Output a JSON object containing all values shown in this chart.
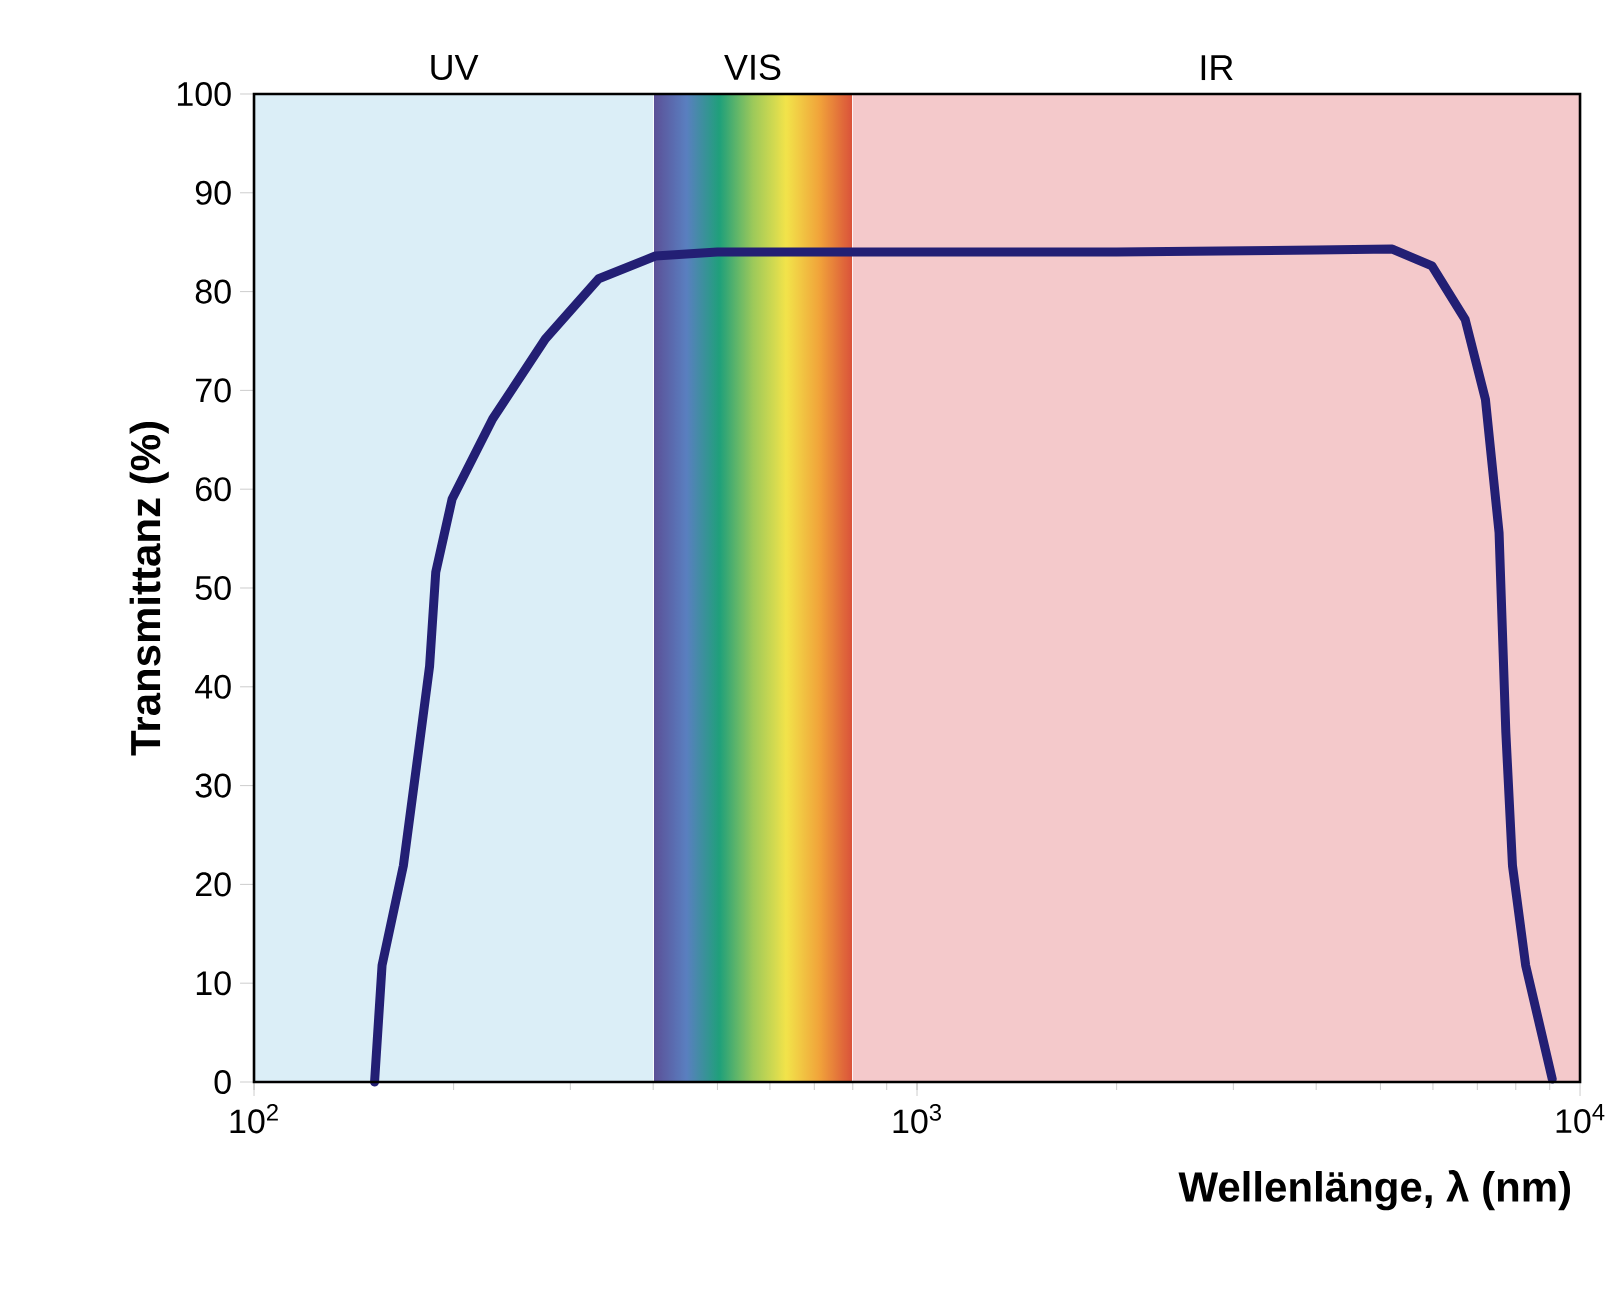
{
  "chart_data": {
    "type": "line",
    "xlabel": "Wellenlänge, λ (nm)",
    "ylabel": "Transmittanz (%)",
    "log": "x",
    "xlim": [
      100,
      10000
    ],
    "ylim": [
      0,
      100
    ],
    "xticks": [
      {
        "value": 100,
        "label": "10$^{2}$"
      },
      {
        "value": 1000,
        "label": "10$^{3}$"
      },
      {
        "value": 10000,
        "label": "10$^{4}$"
      }
    ],
    "yticks": [
      0,
      10,
      20,
      30,
      40,
      50,
      60,
      70,
      80,
      90,
      100
    ],
    "marker": "none",
    "line_style": "solid",
    "bands": [
      {
        "axis": "x",
        "from": 100,
        "to": 400,
        "label": "UV",
        "color": "#dbeef7"
      },
      {
        "axis": "x",
        "from": 400,
        "to": 800,
        "label": "VIS"
      },
      {
        "axis": "x",
        "from": 800,
        "to": 10000,
        "label": "IR",
        "color": "#f4c9cb"
      }
    ],
    "series": [
      {
        "color": "#231f74",
        "x": [
          152,
          156,
          168,
          177,
          184,
          188,
          199,
          229,
          275,
          331,
          403,
          500,
          1000,
          2000,
          4000,
          5210,
          5980,
          6710,
          7200,
          7550,
          7730,
          7910,
          8280,
          9080
        ],
        "values": [
          0,
          11.8,
          21.9,
          33.4,
          42.1,
          51.6,
          59,
          67.1,
          75.2,
          81.3,
          83.6,
          84,
          84,
          84,
          84.2,
          84.3,
          82.6,
          77.2,
          69.1,
          55.6,
          35.4,
          21.9,
          11.8,
          0.3
        ]
      }
    ]
  }
}
